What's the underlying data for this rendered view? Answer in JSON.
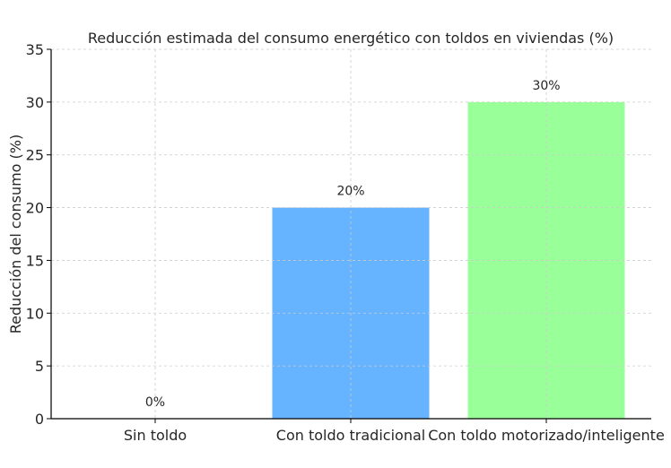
{
  "chart_data": {
    "type": "bar",
    "title": "Reducción estimada del consumo energético con toldos en viviendas (%)",
    "xlabel": "",
    "ylabel": "Reducción del consumo (%)",
    "categories": [
      "Sin toldo",
      "Con toldo tradicional",
      "Con toldo motorizado/inteligente"
    ],
    "values": [
      0,
      20,
      30
    ],
    "data_labels": [
      "0%",
      "20%",
      "30%"
    ],
    "colors": [
      "#ff9999",
      "#66b3ff",
      "#99ff99"
    ],
    "ylim": [
      0,
      35
    ],
    "yticks": [
      0,
      5,
      10,
      15,
      20,
      25,
      30,
      35
    ],
    "grid": true,
    "grid_style": "dashed"
  }
}
